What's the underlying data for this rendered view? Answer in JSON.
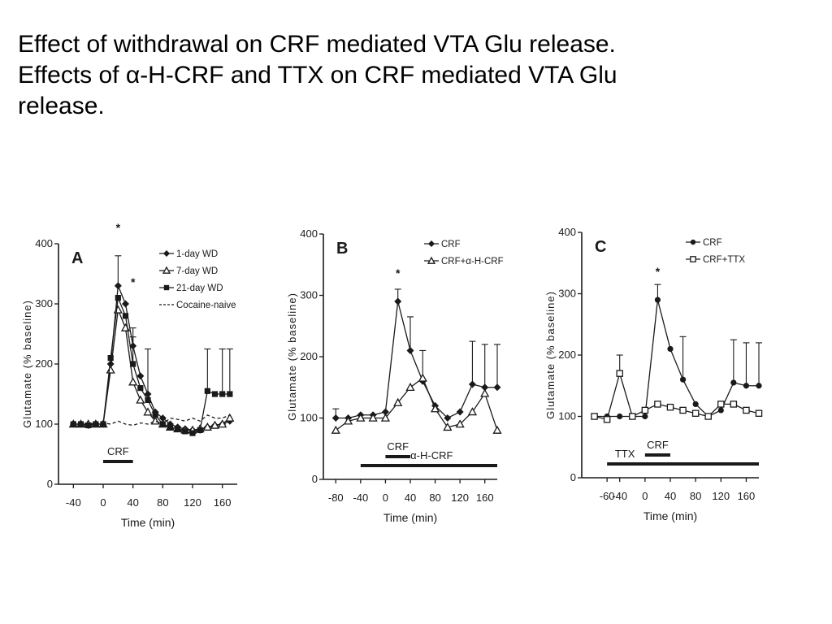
{
  "slide": {
    "title_lines": [
      "Effect of withdrawal on CRF mediated VTA Glu release.",
      "Effects of α-H-CRF and TTX on CRF mediated VTA Glu",
      "release."
    ]
  },
  "colors": {
    "ink": "#1a1a1a",
    "background": "#ffffff"
  },
  "chart_data": [
    {
      "type": "line",
      "panel_label": "A",
      "xlabel": "Time (min)",
      "ylabel": "Glutamate (% baseline)",
      "xlim": [
        -60,
        180
      ],
      "ylim": [
        0,
        400
      ],
      "xticks": [
        -40,
        0,
        40,
        80,
        120,
        160
      ],
      "yticks": [
        0,
        100,
        200,
        300,
        400
      ],
      "legend_position": "top-right",
      "bars": [
        {
          "label": "CRF",
          "from": 0,
          "to": 40
        }
      ],
      "annotations": [
        {
          "text": "*",
          "x": 20,
          "y": 420
        },
        {
          "text": "*",
          "x": 40,
          "y": 330
        }
      ],
      "series": [
        {
          "name": "1-day WD",
          "marker": "diamond",
          "x": [
            -40,
            -30,
            -20,
            -10,
            0,
            10,
            20,
            30,
            40,
            50,
            60,
            70,
            80,
            90,
            100,
            110,
            120,
            130,
            140,
            150,
            160,
            170
          ],
          "y": [
            100,
            100,
            98,
            100,
            100,
            200,
            330,
            300,
            230,
            180,
            150,
            120,
            110,
            100,
            95,
            92,
            90,
            90,
            95,
            98,
            100,
            105
          ],
          "err": [
            0,
            0,
            0,
            0,
            0,
            0,
            50,
            0,
            30,
            0,
            0,
            0,
            0,
            0,
            0,
            0,
            0,
            0,
            0,
            0,
            0,
            0
          ]
        },
        {
          "name": "7-day WD",
          "marker": "triangle",
          "x": [
            -40,
            -30,
            -20,
            -10,
            0,
            10,
            20,
            30,
            40,
            50,
            60,
            70,
            80,
            90,
            100,
            110,
            120,
            130,
            140,
            150,
            160,
            170
          ],
          "y": [
            100,
            100,
            100,
            100,
            100,
            190,
            290,
            260,
            170,
            140,
            120,
            105,
            100,
            95,
            92,
            90,
            90,
            92,
            95,
            98,
            100,
            110
          ],
          "err": [
            0,
            0,
            0,
            0,
            0,
            0,
            0,
            0,
            0,
            0,
            0,
            0,
            0,
            0,
            0,
            0,
            0,
            0,
            0,
            0,
            0,
            0
          ]
        },
        {
          "name": "21-day WD",
          "marker": "square",
          "x": [
            -40,
            -30,
            -20,
            -10,
            0,
            10,
            20,
            30,
            40,
            50,
            60,
            70,
            80,
            90,
            100,
            110,
            120,
            130,
            140,
            150,
            160,
            170
          ],
          "y": [
            100,
            100,
            98,
            100,
            100,
            210,
            310,
            280,
            200,
            160,
            140,
            115,
            100,
            95,
            92,
            88,
            85,
            90,
            155,
            150,
            150,
            150
          ],
          "err": [
            0,
            0,
            0,
            0,
            0,
            0,
            0,
            0,
            45,
            0,
            85,
            0,
            0,
            0,
            0,
            0,
            0,
            0,
            70,
            0,
            75,
            75
          ]
        },
        {
          "name": "Cocaine-naive",
          "marker": "none",
          "x": [
            -40,
            -30,
            -20,
            -10,
            0,
            10,
            20,
            30,
            40,
            50,
            60,
            70,
            80,
            90,
            100,
            110,
            120,
            130,
            140,
            150,
            160,
            170
          ],
          "y": [
            100,
            100,
            102,
            100,
            102,
            100,
            105,
            100,
            98,
            102,
            100,
            105,
            100,
            110,
            108,
            105,
            110,
            105,
            115,
            110,
            110,
            115
          ],
          "err": [
            0,
            0,
            0,
            0,
            0,
            0,
            0,
            0,
            0,
            0,
            0,
            0,
            0,
            0,
            0,
            0,
            0,
            0,
            0,
            0,
            0,
            0
          ]
        }
      ]
    },
    {
      "type": "line",
      "panel_label": "B",
      "xlabel": "Time (min)",
      "ylabel": "Glutamate (% baseline)",
      "xlim": [
        -100,
        180
      ],
      "ylim": [
        0,
        400
      ],
      "xticks": [
        -80,
        -40,
        0,
        40,
        80,
        120,
        160
      ],
      "yticks": [
        0,
        100,
        200,
        300,
        400
      ],
      "legend_position": "top-right",
      "bars": [
        {
          "label": "CRF",
          "from": 0,
          "to": 40
        },
        {
          "label": "α-H-CRF",
          "from": -40,
          "to": 180
        }
      ],
      "annotations": [
        {
          "text": "*",
          "x": 20,
          "y": 330
        }
      ],
      "series": [
        {
          "name": "CRF",
          "marker": "diamond",
          "x": [
            -80,
            -60,
            -40,
            -20,
            0,
            20,
            40,
            60,
            80,
            100,
            120,
            140,
            160,
            180
          ],
          "y": [
            100,
            100,
            105,
            105,
            110,
            290,
            210,
            160,
            120,
            100,
            110,
            155,
            150,
            150
          ],
          "err": [
            15,
            0,
            0,
            0,
            0,
            20,
            55,
            50,
            0,
            0,
            0,
            70,
            70,
            70
          ]
        },
        {
          "name": "CRF+α-H-CRF",
          "marker": "triangle",
          "x": [
            -80,
            -60,
            -40,
            -20,
            0,
            20,
            40,
            60,
            80,
            100,
            120,
            140,
            160,
            180
          ],
          "y": [
            80,
            95,
            100,
            100,
            100,
            125,
            150,
            165,
            115,
            85,
            90,
            110,
            140,
            80
          ],
          "err": [
            0,
            0,
            0,
            0,
            0,
            0,
            0,
            0,
            0,
            0,
            0,
            0,
            0,
            0
          ]
        }
      ]
    },
    {
      "type": "line",
      "panel_label": "C",
      "xlabel": "Time (min)",
      "ylabel": "Glutamate (% baseline)",
      "xlim": [
        -100,
        180
      ],
      "ylim": [
        0,
        400
      ],
      "xticks": [
        -60,
        -40,
        0,
        40,
        80,
        120,
        160
      ],
      "yticks": [
        0,
        100,
        200,
        300,
        400
      ],
      "legend_position": "top-right",
      "bars": [
        {
          "label": "TTX",
          "from": -60,
          "to": 180
        },
        {
          "label": "CRF",
          "from": 0,
          "to": 40
        }
      ],
      "annotations": [
        {
          "text": "*",
          "x": 20,
          "y": 330
        }
      ],
      "series": [
        {
          "name": "CRF",
          "marker": "circle",
          "x": [
            -80,
            -60,
            -40,
            -20,
            0,
            20,
            40,
            60,
            80,
            100,
            120,
            140,
            160,
            180
          ],
          "y": [
            100,
            100,
            100,
            100,
            100,
            290,
            210,
            160,
            120,
            100,
            110,
            155,
            150,
            150
          ],
          "err": [
            0,
            0,
            0,
            0,
            0,
            25,
            0,
            70,
            0,
            0,
            0,
            70,
            70,
            70
          ]
        },
        {
          "name": "CRF+TTX",
          "marker": "square-open",
          "x": [
            -80,
            -60,
            -40,
            -20,
            0,
            20,
            40,
            60,
            80,
            100,
            120,
            140,
            160,
            180
          ],
          "y": [
            100,
            95,
            170,
            100,
            110,
            120,
            115,
            110,
            105,
            100,
            120,
            120,
            110,
            105
          ],
          "err": [
            0,
            0,
            30,
            0,
            0,
            0,
            0,
            0,
            0,
            0,
            0,
            0,
            0,
            0
          ]
        }
      ]
    }
  ]
}
